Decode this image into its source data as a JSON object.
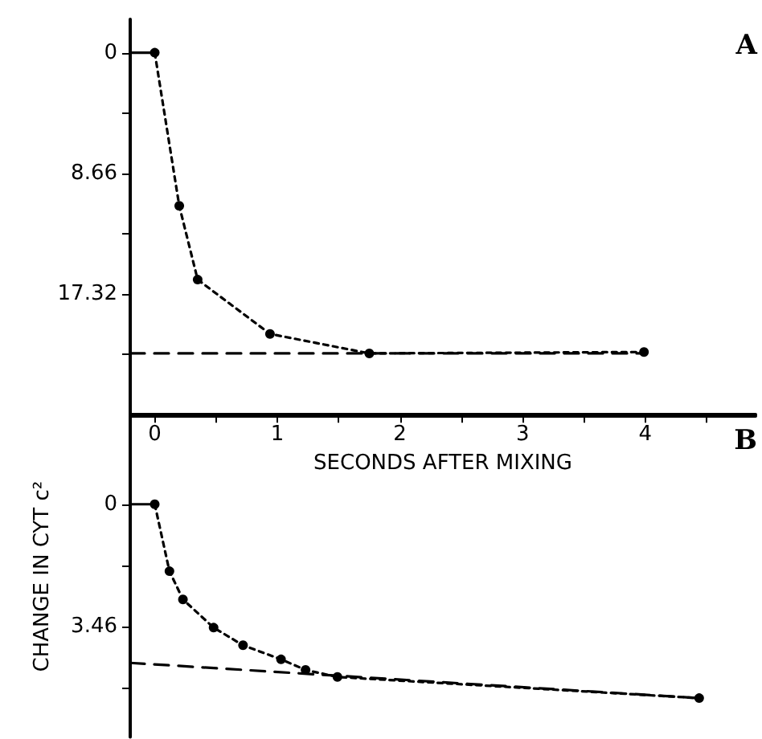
{
  "chart_data": [
    {
      "type": "line",
      "xlabel": "SECONDS AFTER MIXING",
      "annotations": [
        "A"
      ],
      "xlim": [
        -0.2,
        4.9
      ],
      "xticks": [
        0,
        {
          "value": 0.5,
          "label": null
        },
        1,
        {
          "value": 1.5,
          "label": null
        },
        2,
        {
          "value": 2.5,
          "label": null
        },
        3,
        {
          "value": 3.5,
          "label": null
        },
        4,
        {
          "value": 4.5,
          "label": null
        }
      ],
      "ylim": [
        26,
        -2.4
      ],
      "yticks": [
        0,
        {
          "value": 4.33,
          "label": null
        },
        8.66,
        {
          "value": 12.99,
          "label": null
        },
        17.32,
        {
          "value": 21.65,
          "label": null
        }
      ],
      "series": [
        {
          "x": [
            -0.2,
            0
          ],
          "values": [
            0,
            0
          ],
          "color": "#000000",
          "line_style": "solid"
        },
        {
          "x": [
            0,
            0.2,
            0.35,
            0.94,
            1.75,
            3.99
          ],
          "values": [
            0,
            11.0,
            16.3,
            20.2,
            21.6,
            21.5
          ],
          "color": "#000000",
          "line_style": "dotted",
          "marker": "circle"
        },
        {
          "x": [
            -0.2,
            4.0
          ],
          "values": [
            21.6,
            21.6
          ],
          "color": "#000000",
          "line_style": "dashed"
        }
      ]
    },
    {
      "type": "line",
      "ylabel": "CHANGE IN CYT c²",
      "annotations": [
        "B"
      ],
      "tick_labels": "y",
      "xlim": [
        -0.2,
        4.9
      ],
      "ylim": [
        6.6,
        -2.5
      ],
      "yticks": [
        0,
        {
          "value": 1.73,
          "label": null
        },
        3.46,
        {
          "value": 5.19,
          "label": null
        }
      ],
      "series": [
        {
          "x": [
            -0.2,
            0
          ],
          "values": [
            0,
            0
          ],
          "color": "#000000",
          "line_style": "solid"
        },
        {
          "x": [
            0,
            0.12,
            0.23,
            0.48,
            0.72,
            1.03,
            1.23,
            1.49,
            4.44
          ],
          "values": [
            0,
            1.9,
            2.7,
            3.5,
            4.0,
            4.4,
            4.7,
            4.9,
            5.5
          ],
          "color": "#000000",
          "line_style": "dotted",
          "marker": "circle"
        },
        {
          "x": [
            -0.2,
            4.44
          ],
          "values": [
            4.5,
            5.5
          ],
          "color": "#000000",
          "line_style": "dashed"
        }
      ]
    }
  ]
}
